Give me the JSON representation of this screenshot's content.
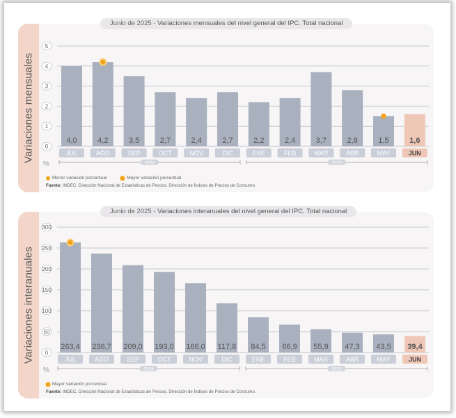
{
  "charts": [
    {
      "side_label": "Variaciones mensuales",
      "title_prefix": "Junio de 2025 - ",
      "title_main": "Variaciones mensuales del nivel general del IPC. Total nacional",
      "legend": [
        {
          "label": "Menor variación porcentual",
          "marker": "dot"
        },
        {
          "label": "Mayor variación porcentual",
          "marker": "ring"
        }
      ],
      "source_label": "Fuente:",
      "source_text": "INDEC, Dirección Nacional de Estadísticas de Precios. Dirección de Índices de Precios de Consumo.",
      "unit": "%",
      "year_labels": [
        "2024",
        "2025"
      ]
    },
    {
      "side_label": "Variaciones interanuales",
      "title_prefix": "Junio de 2025 - ",
      "title_main": "Variaciones interanuales del nivel general del IPC. Total nacional",
      "legend": [
        {
          "label": "Mayor variación porcentual",
          "marker": "ring"
        }
      ],
      "source_label": "Fuente:",
      "source_text": "INDEC, Dirección Nacional de Estadísticas de Precios. Dirección de Índices de Precios de Consumo.",
      "unit": "%",
      "year_labels": [
        "2024",
        "2025"
      ]
    }
  ],
  "colors": {
    "bar": "#a9b1bf",
    "bar_highlight": "#efc7b6",
    "marker": "#f2a31b",
    "tick_pill": "#c9ced8",
    "grid": "#c4c7ce"
  },
  "chart_data": [
    {
      "type": "bar",
      "categories": [
        "JUL",
        "AGO",
        "SEP",
        "OCT",
        "NOV",
        "DIC",
        "ENE",
        "FEB",
        "MAR",
        "ABR",
        "MAY",
        "JUN"
      ],
      "values": [
        4.0,
        4.2,
        3.5,
        2.7,
        2.4,
        2.7,
        2.2,
        2.4,
        3.7,
        2.8,
        1.5,
        1.6
      ],
      "value_labels": [
        "4,0",
        "4,2",
        "3,5",
        "2,7",
        "2,4",
        "2,7",
        "2,2",
        "2,4",
        "3,7",
        "2,8",
        "1,5",
        "1,6"
      ],
      "yticks": [
        "0",
        "1",
        "2",
        "3",
        "4",
        "5"
      ],
      "ylim": [
        0,
        5
      ],
      "ylabel": "%",
      "highlight_index": 11,
      "marker_max_index": 1,
      "marker_min_index": 10,
      "grid": true
    },
    {
      "type": "bar",
      "categories": [
        "JUL",
        "AGO",
        "SEP",
        "OCT",
        "NOV",
        "DIC",
        "ENE",
        "FEB",
        "MAR",
        "ABR",
        "MAY",
        "JUN"
      ],
      "values": [
        263.4,
        236.7,
        209.0,
        193.0,
        166.0,
        117.8,
        84.5,
        66.9,
        55.9,
        47.3,
        43.5,
        39.4
      ],
      "value_labels": [
        "263,4",
        "236,7",
        "209,0",
        "193,0",
        "166,0",
        "117,8",
        "84,5",
        "66,9",
        "55,9",
        "47,3",
        "43,5",
        "39,4"
      ],
      "yticks": [
        "0",
        "50",
        "100",
        "150",
        "200",
        "250",
        "300"
      ],
      "ylim": [
        0,
        300
      ],
      "ylabel": "%",
      "highlight_index": 11,
      "marker_max_index": 0,
      "grid": true
    }
  ]
}
